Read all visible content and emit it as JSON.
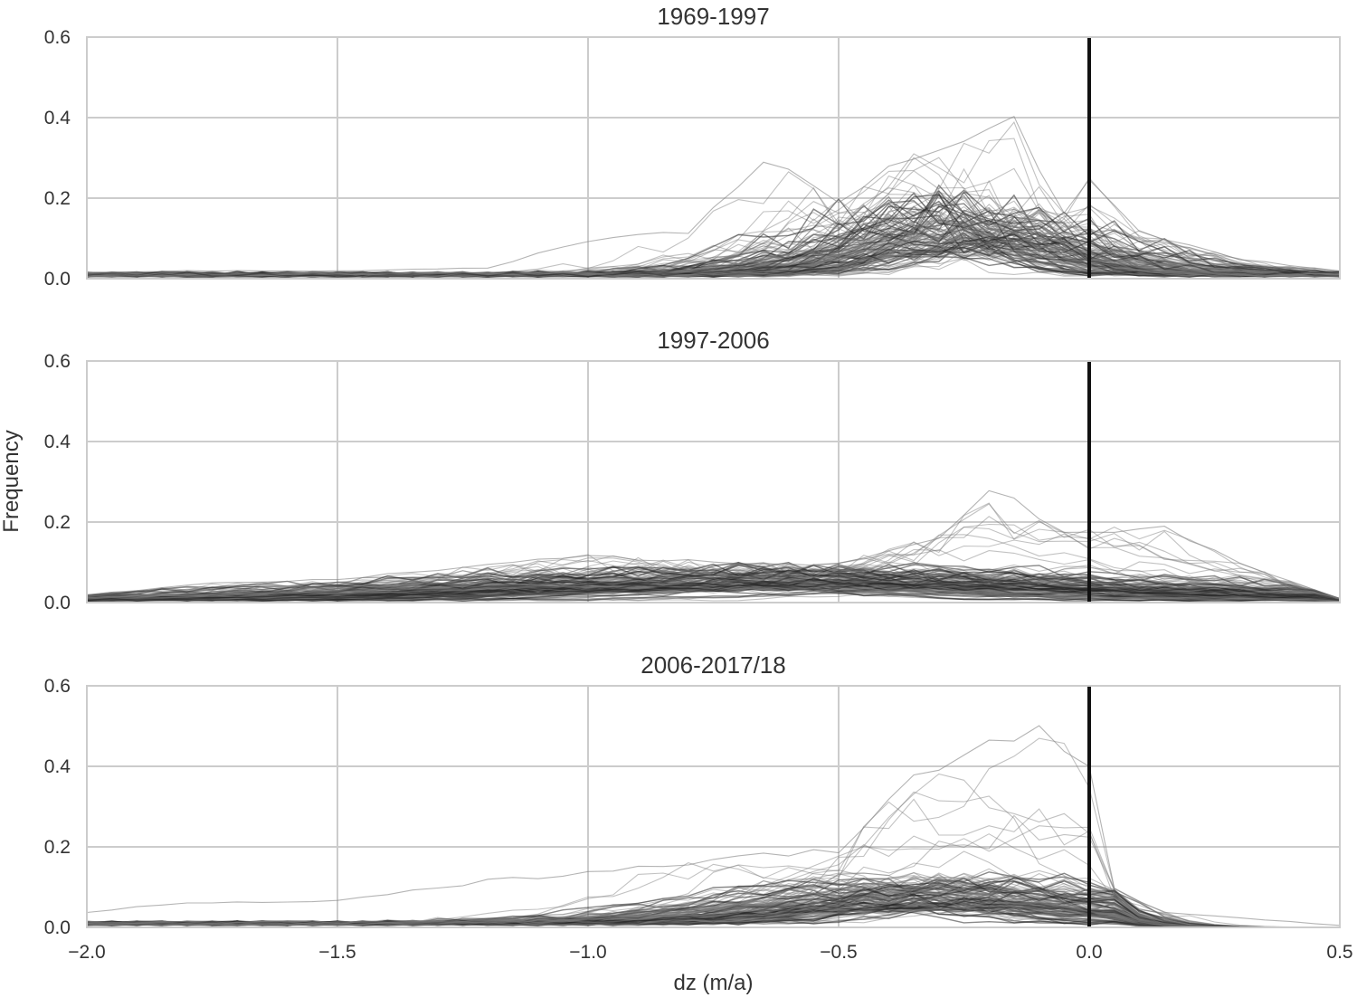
{
  "chart_data": {
    "type": "line",
    "shared_x": true,
    "xlabel": "dz (m/a)",
    "ylabel": "Frequency",
    "xlim": [
      -2.0,
      0.5
    ],
    "xticks": [
      -2.0,
      -1.5,
      -1.0,
      -0.5,
      0.0,
      0.5
    ],
    "xtick_labels": [
      "−2.0",
      "−1.5",
      "−1.0",
      "−0.5",
      "0.0",
      "0.5"
    ],
    "grid": true,
    "reference_line": {
      "x": 0.0,
      "color": "#111111"
    },
    "panels": [
      {
        "title": "1969-1997",
        "ylim": [
          0,
          0.6
        ],
        "yticks": [
          0.0,
          0.2,
          0.4,
          0.6
        ],
        "ytick_labels": [
          "0.0",
          "0.2",
          "0.4",
          "0.6"
        ],
        "n_curves": 130,
        "mode": -0.28,
        "spread": 0.22,
        "typical_peak": 0.11,
        "peak_range": [
          0.04,
          0.41
        ],
        "tail_floor": 0.012,
        "max_series": [
          [
            -2.0,
            0.016
          ],
          [
            -1.8,
            0.02
          ],
          [
            -1.5,
            0.02
          ],
          [
            -1.2,
            0.028
          ],
          [
            -1.0,
            0.1
          ],
          [
            -0.8,
            0.12
          ],
          [
            -0.65,
            0.31
          ],
          [
            -0.5,
            0.2
          ],
          [
            -0.35,
            0.32
          ],
          [
            -0.15,
            0.41
          ],
          [
            -0.05,
            0.17
          ],
          [
            0.0,
            0.26
          ],
          [
            0.1,
            0.12
          ],
          [
            0.3,
            0.05
          ],
          [
            0.5,
            0.02
          ]
        ]
      },
      {
        "title": "1997-2006",
        "ylim": [
          0,
          0.6
        ],
        "yticks": [
          0.0,
          0.2,
          0.4,
          0.6
        ],
        "ytick_labels": [
          "0.0",
          "0.2",
          "0.4",
          "0.6"
        ],
        "n_curves": 130,
        "mode": -0.55,
        "spread": 0.55,
        "typical_peak": 0.05,
        "peak_range": [
          0.025,
          0.3
        ],
        "tail_floor": 0.008,
        "max_series": [
          [
            -2.0,
            0.02
          ],
          [
            -1.75,
            0.05
          ],
          [
            -1.5,
            0.06
          ],
          [
            -1.25,
            0.09
          ],
          [
            -1.0,
            0.12
          ],
          [
            -0.7,
            0.1
          ],
          [
            -0.5,
            0.1
          ],
          [
            -0.3,
            0.17
          ],
          [
            -0.2,
            0.3
          ],
          [
            -0.05,
            0.18
          ],
          [
            0.15,
            0.195
          ],
          [
            0.3,
            0.1
          ],
          [
            0.5,
            0.01
          ]
        ]
      },
      {
        "title": "2006-2017/18",
        "ylim": [
          0,
          0.6
        ],
        "yticks": [
          0.0,
          0.2,
          0.4,
          0.6
        ],
        "ytick_labels": [
          "0.0",
          "0.2",
          "0.4",
          "0.6"
        ],
        "n_curves": 130,
        "mode": -0.3,
        "spread": 0.3,
        "typical_peak": 0.07,
        "peak_range": [
          0.03,
          0.52
        ],
        "tail_floor": 0.012,
        "cutoff": 0.05,
        "max_series": [
          [
            -2.0,
            0.04
          ],
          [
            -1.85,
            0.06
          ],
          [
            -1.5,
            0.07
          ],
          [
            -1.2,
            0.12
          ],
          [
            -1.0,
            0.14
          ],
          [
            -0.7,
            0.18
          ],
          [
            -0.5,
            0.2
          ],
          [
            -0.35,
            0.38
          ],
          [
            -0.15,
            0.5
          ],
          [
            -0.1,
            0.52
          ],
          [
            -0.05,
            0.47
          ],
          [
            0.0,
            0.43
          ],
          [
            0.05,
            0.1
          ],
          [
            0.15,
            0.04
          ],
          [
            0.5,
            0.005
          ]
        ]
      }
    ]
  }
}
